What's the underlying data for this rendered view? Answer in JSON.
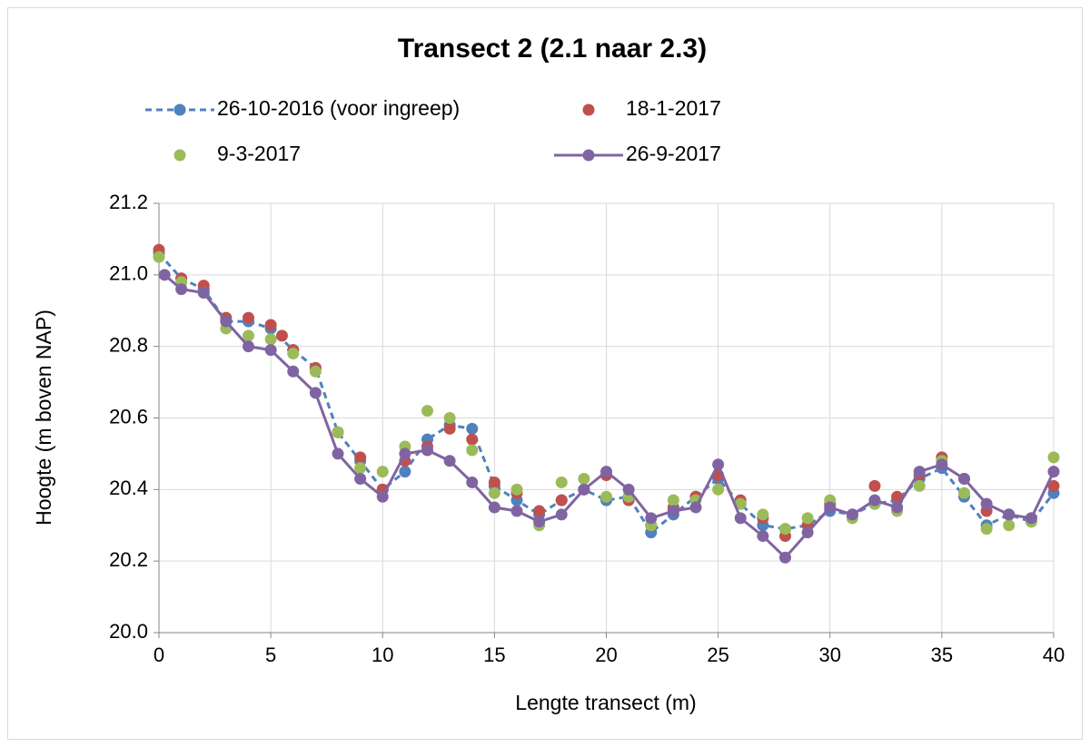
{
  "chart_data": {
    "type": "line",
    "title": "Transect 2 (2.1 naar 2.3)",
    "x_label": "Lengte transect (m)",
    "y_label": "Hoogte (m boven NAP)",
    "xlim": [
      0,
      40
    ],
    "xticks": [
      0,
      5,
      10,
      15,
      20,
      25,
      30,
      35,
      40
    ],
    "ylim": [
      20.0,
      21.2
    ],
    "yticks": [
      {
        "value": 20.0,
        "label": "20.0"
      },
      20.2,
      20.4,
      20.6,
      20.8,
      {
        "value": 21.0,
        "label": "21.0"
      },
      21.2
    ],
    "grid": true,
    "legend": "top",
    "series": [
      {
        "name": "26-10-2016 (voor ingreep)",
        "color": "#4f81bd",
        "line": "dashed",
        "x": [
          0,
          1,
          2,
          3,
          4,
          5,
          6,
          7,
          8,
          9,
          10,
          11,
          12,
          13,
          14,
          15,
          16,
          17,
          18,
          19,
          20,
          21,
          22,
          23,
          24,
          25,
          26,
          27,
          28,
          29,
          30,
          31,
          32,
          33,
          34,
          35,
          36,
          37,
          38,
          39,
          40
        ],
        "values": [
          21.06,
          20.99,
          20.96,
          20.87,
          20.87,
          20.85,
          20.79,
          20.74,
          20.56,
          20.48,
          20.4,
          20.45,
          20.54,
          20.58,
          20.57,
          20.41,
          20.37,
          20.33,
          20.37,
          20.4,
          20.37,
          20.38,
          20.28,
          20.33,
          20.38,
          20.43,
          20.36,
          20.3,
          20.29,
          20.3,
          20.34,
          20.33,
          20.36,
          20.37,
          20.43,
          20.46,
          20.38,
          20.3,
          20.33,
          20.31,
          20.39
        ]
      },
      {
        "name": "18-1-2017",
        "color": "#c0504d",
        "line": "none",
        "x": [
          0,
          1,
          2,
          3,
          4,
          5,
          5.5,
          6,
          7,
          8,
          9,
          10,
          11,
          12,
          13,
          14,
          15,
          16,
          17,
          18,
          19,
          20,
          21,
          22,
          23,
          24,
          25,
          26,
          27,
          28,
          29,
          30,
          31,
          32,
          33,
          34,
          35,
          36,
          37,
          38,
          39,
          40
        ],
        "values": [
          21.07,
          20.99,
          20.97,
          20.88,
          20.88,
          20.86,
          20.83,
          20.79,
          20.74,
          20.56,
          20.49,
          20.4,
          20.48,
          20.52,
          20.57,
          20.54,
          20.42,
          20.39,
          20.34,
          20.37,
          20.4,
          20.44,
          20.37,
          20.3,
          20.35,
          20.38,
          20.44,
          20.37,
          20.32,
          20.27,
          20.3,
          20.36,
          20.33,
          20.41,
          20.38,
          20.44,
          20.49,
          20.43,
          20.34,
          20.33,
          20.32,
          20.41
        ]
      },
      {
        "name": "9-3-2017",
        "color": "#9bbb59",
        "line": "none",
        "x": [
          0,
          1,
          2,
          3,
          4,
          5,
          6,
          7,
          8,
          9,
          10,
          11,
          12,
          13,
          14,
          15,
          16,
          17,
          18,
          19,
          20,
          21,
          22,
          23,
          24,
          25,
          26,
          27,
          28,
          29,
          30,
          31,
          32,
          33,
          34,
          35,
          36,
          37,
          38,
          39,
          40
        ],
        "values": [
          21.05,
          20.98,
          20.95,
          20.85,
          20.83,
          20.82,
          20.78,
          20.73,
          20.56,
          20.46,
          20.45,
          20.52,
          20.62,
          20.6,
          20.51,
          20.39,
          20.4,
          20.3,
          20.42,
          20.43,
          20.38,
          20.38,
          20.3,
          20.37,
          20.37,
          20.4,
          20.36,
          20.33,
          20.29,
          20.32,
          20.37,
          20.32,
          20.36,
          20.34,
          20.41,
          20.48,
          20.39,
          20.29,
          20.3,
          20.31,
          20.49
        ]
      },
      {
        "name": "26-9-2017",
        "color": "#8064a2",
        "line": "solid",
        "x": [
          0.25,
          1,
          2,
          3,
          4,
          5,
          6,
          7,
          8,
          9,
          10,
          11,
          12,
          13,
          14,
          15,
          16,
          17,
          18,
          19,
          20,
          21,
          22,
          23,
          24,
          25,
          26,
          27,
          28,
          29,
          30,
          31,
          32,
          33,
          34,
          35,
          36,
          37,
          38,
          39,
          40
        ],
        "values": [
          21.0,
          20.96,
          20.95,
          20.87,
          20.8,
          20.79,
          20.73,
          20.67,
          20.5,
          20.43,
          20.38,
          20.5,
          20.51,
          20.48,
          20.42,
          20.35,
          20.34,
          20.31,
          20.33,
          20.4,
          20.45,
          20.4,
          20.32,
          20.34,
          20.35,
          20.47,
          20.32,
          20.27,
          20.21,
          20.28,
          20.35,
          20.33,
          20.37,
          20.35,
          20.45,
          20.47,
          20.43,
          20.36,
          20.33,
          20.32,
          20.45
        ]
      }
    ]
  }
}
